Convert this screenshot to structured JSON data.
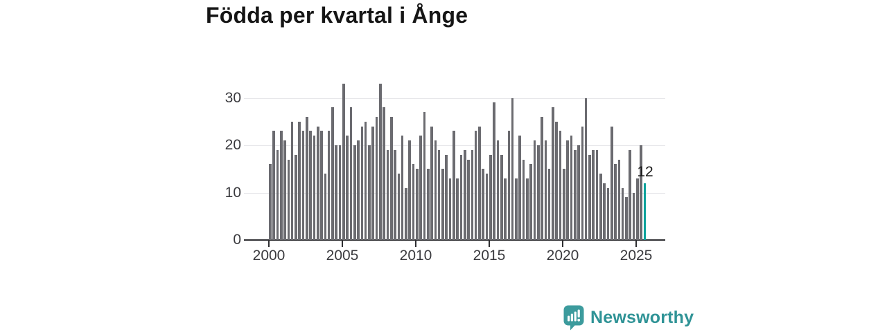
{
  "title": "Födda per kvartal i Ånge",
  "annotation": {
    "last_bar_label": "12"
  },
  "branding": {
    "logo_text": "Newsworthy",
    "logo_icon": "speech-bubble-with-bar-chart"
  },
  "colors": {
    "bar": "#6b6b70",
    "highlight": "#0ba29b",
    "grid": "#e7e7ea",
    "axis": "#2e2e31",
    "tick_text": "#3a3a3e",
    "title_text": "#151515",
    "logo": "#2f9396",
    "background": "#ffffff"
  },
  "chart_data": {
    "type": "bar",
    "title": "Födda per kvartal i Ånge",
    "x_start": "2000-Q1",
    "x_end": "2025-Q3",
    "frequency": "quarterly",
    "x_tick_labels": [
      "2000",
      "2005",
      "2010",
      "2015",
      "2020",
      "2025"
    ],
    "x_tick_years": [
      2000,
      2005,
      2010,
      2015,
      2020,
      2025
    ],
    "y_ticks": [
      0,
      10,
      20,
      30
    ],
    "y_tick_labels": [
      "0",
      "10",
      "20",
      "30"
    ],
    "ylim": [
      0,
      34
    ],
    "grid": "horizontal",
    "legend": "none",
    "highlight_last_bar": true,
    "last_bar_value_label": "12",
    "values": [
      16,
      23,
      19,
      23,
      21,
      17,
      25,
      18,
      25,
      23,
      26,
      23,
      22,
      24,
      23,
      14,
      23,
      28,
      20,
      20,
      33,
      22,
      28,
      20,
      21,
      24,
      25,
      20,
      24,
      26,
      33,
      28,
      19,
      26,
      19,
      14,
      22,
      11,
      21,
      16,
      15,
      22,
      27,
      15,
      24,
      21,
      19,
      15,
      18,
      13,
      23,
      13,
      18,
      19,
      17,
      19,
      23,
      24,
      15,
      14,
      18,
      29,
      21,
      18,
      13,
      23,
      30,
      13,
      22,
      17,
      13,
      16,
      21,
      20,
      26,
      21,
      15,
      28,
      25,
      23,
      15,
      21,
      22,
      19,
      20,
      24,
      30,
      18,
      19,
      19,
      14,
      12,
      11,
      24,
      16,
      17,
      11,
      9,
      19,
      10,
      13,
      20,
      12
    ]
  }
}
